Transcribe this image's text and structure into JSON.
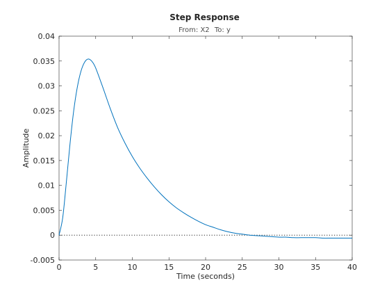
{
  "chart_data": {
    "type": "line",
    "title": "Step Response",
    "subtitle_prefix_from": "From:",
    "subtitle_from_value": "X2",
    "subtitle_prefix_to": "To:",
    "subtitle_to_value": "y",
    "xlabel": "Time (seconds)",
    "ylabel": "Amplitude",
    "xlim": [
      0,
      40
    ],
    "ylim": [
      -0.005,
      0.04
    ],
    "x_ticks": [
      0,
      5,
      10,
      15,
      20,
      25,
      30,
      35,
      40
    ],
    "x_tick_labels": [
      "0",
      "5",
      "10",
      "15",
      "20",
      "25",
      "30",
      "35",
      "40"
    ],
    "y_ticks": [
      -0.005,
      0,
      0.005,
      0.01,
      0.015,
      0.02,
      0.025,
      0.03,
      0.035,
      0.04
    ],
    "y_tick_labels": [
      "-0.005",
      "0",
      "0.005",
      "0.01",
      "0.015",
      "0.02",
      "0.025",
      "0.03",
      "0.035",
      "0.04"
    ],
    "grid": false,
    "reference_line": {
      "y": 0,
      "style": "dotted"
    },
    "series": [
      {
        "color": "#0072BD",
        "x": [
          0,
          0.5,
          1,
          1.5,
          2,
          2.5,
          3,
          3.5,
          4,
          4.5,
          5,
          6,
          7,
          8,
          9,
          10,
          11,
          12,
          13,
          14,
          15,
          16,
          17,
          18,
          19,
          20,
          21,
          22,
          23,
          24,
          25,
          26,
          27,
          28,
          29,
          30,
          31,
          32,
          33,
          34,
          35,
          36,
          37,
          38,
          39,
          40
        ],
        "y": [
          0,
          0.0035,
          0.0107,
          0.0184,
          0.025,
          0.0298,
          0.033,
          0.0348,
          0.0354,
          0.0349,
          0.0336,
          0.0296,
          0.0254,
          0.0216,
          0.0185,
          0.0158,
          0.0135,
          0.0115,
          0.0097,
          0.0081,
          0.0067,
          0.0055,
          0.0045,
          0.0036,
          0.0028,
          0.0021,
          0.0016,
          0.0011,
          0.0007,
          0.0004,
          0.0002,
          0.0,
          -0.0001,
          -0.0002,
          -0.0003,
          -0.0004,
          -0.0004,
          -0.0005,
          -0.0005,
          -0.0005,
          -0.0005,
          -0.0006,
          -0.0006,
          -0.0006,
          -0.0006,
          -0.0006
        ]
      }
    ]
  }
}
